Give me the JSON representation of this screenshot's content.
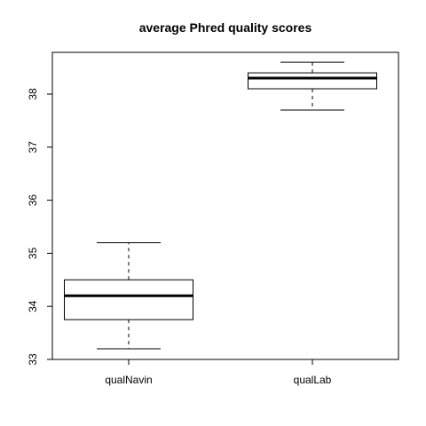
{
  "chart_data": {
    "type": "boxplot",
    "title": "average Phred quality scores",
    "xlabel": "",
    "ylabel": "",
    "ylim": [
      33,
      38.8
    ],
    "yticks": [
      33,
      34,
      35,
      36,
      37,
      38
    ],
    "ytick_labels": [
      "33",
      "34",
      "35",
      "36",
      "37",
      "38"
    ],
    "categories": [
      "qualNavin",
      "qualLab"
    ],
    "boxes": [
      {
        "name": "qualNavin",
        "whisker_low": 33.2,
        "q1": 33.75,
        "median": 34.2,
        "q3": 34.5,
        "whisker_high": 35.2
      },
      {
        "name": "qualLab",
        "whisker_low": 37.7,
        "q1": 38.1,
        "median": 38.3,
        "q3": 38.4,
        "whisker_high": 38.6
      }
    ],
    "grid": false,
    "legend": "none"
  }
}
